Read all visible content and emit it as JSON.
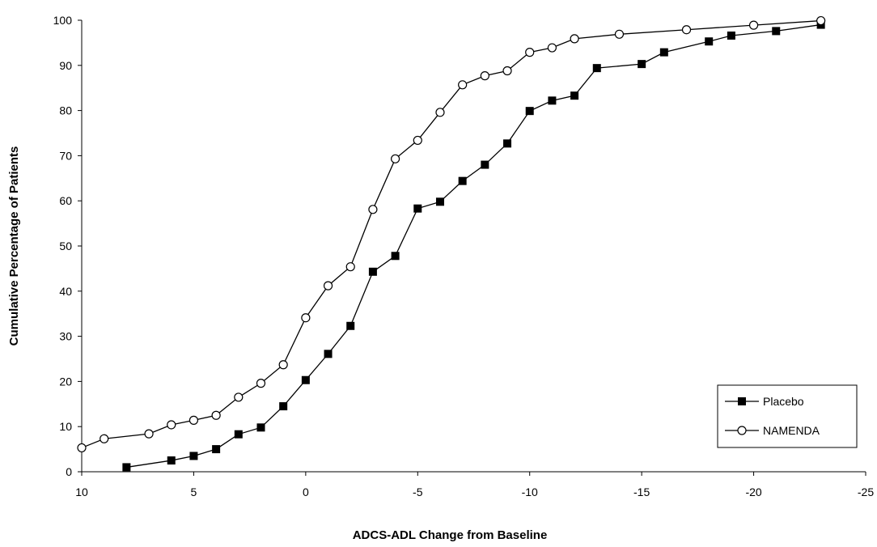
{
  "chart_data": {
    "type": "line",
    "xlabel": "ADCS-ADL Change from Baseline",
    "ylabel": "Cumulative Percentage of Patients",
    "xlim": [
      10,
      -25
    ],
    "ylim": [
      0,
      100
    ],
    "x_ticks": [
      10,
      5,
      0,
      -5,
      -10,
      -15,
      -20,
      -25
    ],
    "y_ticks": [
      0,
      10,
      20,
      30,
      40,
      50,
      60,
      70,
      80,
      90,
      100
    ],
    "grid": false,
    "legend_position": "bottom-right",
    "series": [
      {
        "name": "Placebo",
        "marker": "filled-square",
        "color": "#000000",
        "points": [
          [
            8,
            1
          ],
          [
            6,
            2.5
          ],
          [
            5,
            3.5
          ],
          [
            4,
            5
          ],
          [
            3,
            8.3
          ],
          [
            2,
            9.8
          ],
          [
            1,
            14.5
          ],
          [
            0,
            20.3
          ],
          [
            -1,
            26.1
          ],
          [
            -2,
            32.3
          ],
          [
            -3,
            44.3
          ],
          [
            -4,
            47.8
          ],
          [
            -5,
            58.3
          ],
          [
            -6,
            59.8
          ],
          [
            -7,
            64.4
          ],
          [
            -8,
            68
          ],
          [
            -9,
            72.7
          ],
          [
            -10,
            79.9
          ],
          [
            -11,
            82.2
          ],
          [
            -12,
            83.3
          ],
          [
            -13,
            89.4
          ],
          [
            -15,
            90.3
          ],
          [
            -16,
            92.9
          ],
          [
            -18,
            95.3
          ],
          [
            -19,
            96.6
          ],
          [
            -21,
            97.6
          ],
          [
            -23,
            99
          ]
        ]
      },
      {
        "name": "NAMENDA",
        "marker": "open-circle",
        "color": "#000000",
        "points": [
          [
            10,
            5.3
          ],
          [
            9,
            7.3
          ],
          [
            7,
            8.4
          ],
          [
            6,
            10.4
          ],
          [
            5,
            11.4
          ],
          [
            4,
            12.5
          ],
          [
            3,
            16.5
          ],
          [
            2,
            19.6
          ],
          [
            1,
            23.7
          ],
          [
            0,
            34.1
          ],
          [
            -1,
            41.2
          ],
          [
            -2,
            45.4
          ],
          [
            -3,
            58.1
          ],
          [
            -4,
            69.3
          ],
          [
            -5,
            73.4
          ],
          [
            -6,
            79.6
          ],
          [
            -7,
            85.7
          ],
          [
            -8,
            87.7
          ],
          [
            -9,
            88.8
          ],
          [
            -10,
            92.9
          ],
          [
            -11,
            93.9
          ],
          [
            -12,
            95.9
          ],
          [
            -14,
            96.9
          ],
          [
            -17,
            97.9
          ],
          [
            -20,
            98.9
          ],
          [
            -23,
            99.9
          ]
        ]
      }
    ]
  }
}
